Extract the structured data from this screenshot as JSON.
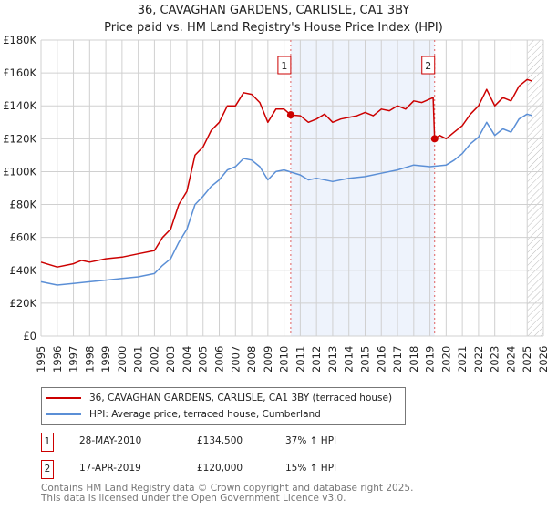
{
  "chart_data": {
    "type": "line",
    "title": "36, CAVAGHAN GARDENS, CARLISLE, CA1 3BY",
    "subtitle": "Price paid vs. HM Land Registry's House Price Index (HPI)",
    "xlim": [
      1995,
      2026
    ],
    "ylim": [
      0,
      180000
    ],
    "yticks": [
      0,
      20000,
      40000,
      60000,
      80000,
      100000,
      120000,
      140000,
      160000,
      180000
    ],
    "ytick_labels": [
      "£0",
      "£20K",
      "£40K",
      "£60K",
      "£80K",
      "£100K",
      "£120K",
      "£140K",
      "£160K",
      "£180K"
    ],
    "xticks": [
      "1995",
      "1996",
      "1997",
      "1998",
      "1999",
      "2000",
      "2001",
      "2002",
      "2003",
      "2004",
      "2005",
      "2006",
      "2007",
      "2008",
      "2009",
      "2010",
      "2011",
      "2012",
      "2013",
      "2014",
      "2015",
      "2016",
      "2017",
      "2018",
      "2019",
      "2020",
      "2021",
      "2022",
      "2023",
      "2024",
      "2025",
      "2026"
    ],
    "grid": true,
    "shaded_range": [
      2010.41,
      2019.29
    ],
    "hatched_from": 2025.0,
    "series": [
      {
        "name": "36, CAVAGHAN GARDENS, CARLISLE, CA1 3BY (terraced house)",
        "color": "#cc0000",
        "x": [
          1995,
          1996,
          1997,
          1997.5,
          1998,
          1999,
          2000,
          2001,
          2002,
          2002.5,
          2003,
          2003.5,
          2004,
          2004.5,
          2005,
          2005.5,
          2006,
          2006.5,
          2007,
          2007.5,
          2008,
          2008.5,
          2009,
          2009.5,
          2010,
          2010.41,
          2011,
          2011.5,
          2012,
          2012.5,
          2013,
          2013.5,
          2014,
          2014.5,
          2015,
          2015.5,
          2016,
          2016.5,
          2017,
          2017.5,
          2018,
          2018.5,
          2019.2,
          2019.29,
          2019.6,
          2020,
          2020.5,
          2021,
          2021.5,
          2022,
          2022.5,
          2023,
          2023.5,
          2024,
          2024.5,
          2025,
          2025.3
        ],
        "values": [
          45000,
          42000,
          44000,
          46000,
          45000,
          47000,
          48000,
          50000,
          52000,
          60000,
          65000,
          80000,
          88000,
          110000,
          115000,
          125000,
          130000,
          140000,
          140000,
          148000,
          147000,
          142000,
          130000,
          138000,
          138000,
          134500,
          134000,
          130000,
          132000,
          135000,
          130000,
          132000,
          133000,
          134000,
          136000,
          134000,
          138000,
          137000,
          140000,
          138000,
          143000,
          142000,
          145000,
          120000,
          122000,
          120000,
          124000,
          128000,
          135000,
          140000,
          150000,
          140000,
          145000,
          143000,
          152000,
          156000,
          155000
        ]
      },
      {
        "name": "HPI: Average price, terraced house, Cumberland",
        "color": "#5b8fd6",
        "x": [
          1995,
          1996,
          1997,
          1998,
          1999,
          2000,
          2001,
          2002,
          2002.5,
          2003,
          2003.5,
          2004,
          2004.5,
          2005,
          2005.5,
          2006,
          2006.5,
          2007,
          2007.5,
          2008,
          2008.5,
          2009,
          2009.5,
          2010,
          2011,
          2011.5,
          2012,
          2013,
          2014,
          2015,
          2016,
          2017,
          2018,
          2019,
          2020,
          2020.5,
          2021,
          2021.5,
          2022,
          2022.5,
          2023,
          2023.5,
          2024,
          2024.5,
          2025,
          2025.3
        ],
        "values": [
          33000,
          31000,
          32000,
          33000,
          34000,
          35000,
          36000,
          38000,
          43000,
          47000,
          57000,
          65000,
          80000,
          85000,
          91000,
          95000,
          101000,
          103000,
          108000,
          107000,
          103000,
          95000,
          100000,
          101000,
          98000,
          95000,
          96000,
          94000,
          96000,
          97000,
          99000,
          101000,
          104000,
          103000,
          104000,
          107000,
          111000,
          117000,
          121000,
          130000,
          122000,
          126000,
          124000,
          132000,
          135000,
          134000
        ]
      }
    ],
    "annotations": [
      {
        "label": "1",
        "x": 2010.41,
        "value": 134500
      },
      {
        "label": "2",
        "x": 2019.29,
        "value": 120000
      }
    ]
  },
  "legend": [
    {
      "label": "36, CAVAGHAN GARDENS, CARLISLE, CA1 3BY (terraced house)",
      "color": "#cc0000"
    },
    {
      "label": "HPI: Average price, terraced house, Cumberland",
      "color": "#5b8fd6"
    }
  ],
  "sales": [
    {
      "num": "1",
      "date": "28-MAY-2010",
      "price": "£134,500",
      "hpi": "37% ↑ HPI"
    },
    {
      "num": "2",
      "date": "17-APR-2019",
      "price": "£120,000",
      "hpi": "15% ↑ HPI"
    }
  ],
  "footer": {
    "line1": "Contains HM Land Registry data © Crown copyright and database right 2025.",
    "line2": "This data is licensed under the Open Government Licence v3.0."
  }
}
